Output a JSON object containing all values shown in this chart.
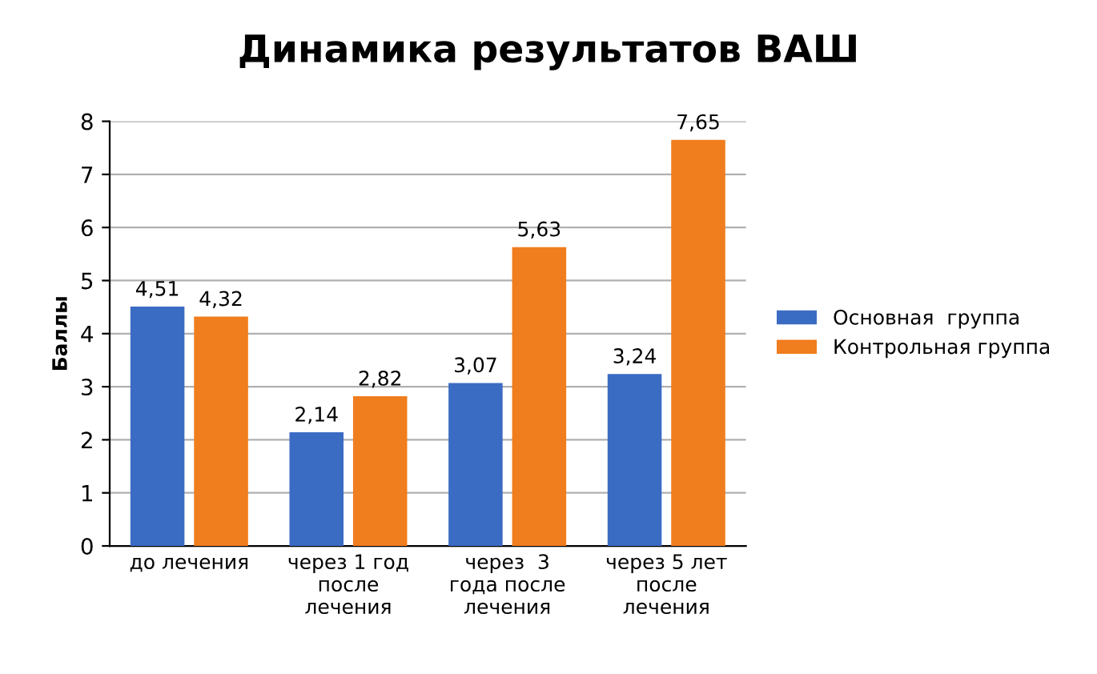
{
  "chart_data": {
    "type": "bar",
    "title": "Динамика результатов ВАШ",
    "ylabel": "Баллы",
    "categories": [
      "до лечения",
      "через 1 год\nпосле\nлечения",
      "через  3\nгода после\nлечения",
      "через 5 лет\nпосле\nлечения"
    ],
    "series": [
      {
        "name": "Основная  группа",
        "color": "#3b6cc4",
        "values": [
          4.51,
          2.14,
          3.07,
          3.24
        ],
        "value_labels": [
          "4,51",
          "2,14",
          "3,07",
          "3,24"
        ]
      },
      {
        "name": "Контрольная группа",
        "color": "#f07d1e",
        "values": [
          4.32,
          2.82,
          5.63,
          7.65
        ],
        "value_labels": [
          "4,32",
          "2,82",
          "5,63",
          "7,65"
        ]
      }
    ],
    "ylim": [
      0,
      8
    ],
    "yticks": [
      0,
      1,
      2,
      3,
      4,
      5,
      6,
      7,
      8
    ],
    "grid": "y",
    "legend": "right"
  }
}
